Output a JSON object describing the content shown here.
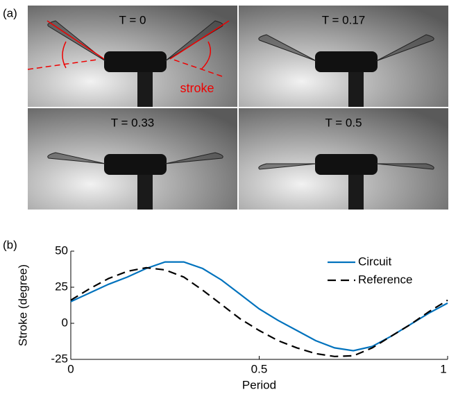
{
  "figure": {
    "panel_a_label": "(a)",
    "panel_b_label": "(b)",
    "frames": [
      {
        "label": "T = 0"
      },
      {
        "label": "T = 0.17"
      },
      {
        "label": "T = 0.33"
      },
      {
        "label": "T = 0.5"
      }
    ],
    "annotation": "stroke"
  },
  "chart_data": {
    "type": "line",
    "x_label": "Period",
    "y_label": "Stroke (degree)",
    "x": [
      0,
      0.05,
      0.1,
      0.15,
      0.2,
      0.25,
      0.3,
      0.35,
      0.4,
      0.45,
      0.5,
      0.55,
      0.6,
      0.65,
      0.7,
      0.75,
      0.8,
      0.85,
      0.9,
      0.95,
      1
    ],
    "series": [
      {
        "name": "Circuit",
        "color": "#0072bd",
        "dash": "none",
        "values": [
          15,
          21,
          27,
          32,
          38,
          42.5,
          42.5,
          38,
          30,
          20,
          10,
          2,
          -5,
          -12,
          -17,
          -19,
          -16,
          -9,
          -1,
          7,
          14
        ]
      },
      {
        "name": "Reference",
        "color": "#000000",
        "dash": "12 7",
        "values": [
          16,
          24,
          31,
          36,
          38.5,
          37,
          32,
          23,
          13,
          3,
          -5,
          -12,
          -17,
          -21,
          -23,
          -22.5,
          -17,
          -9,
          -1,
          8,
          16
        ]
      }
    ],
    "xlim": [
      0,
      1
    ],
    "xticks": [
      0,
      0.5,
      1
    ],
    "ylim": [
      -25,
      50
    ],
    "yticks": [
      -25,
      0,
      25,
      50
    ],
    "legend": "upper right"
  }
}
